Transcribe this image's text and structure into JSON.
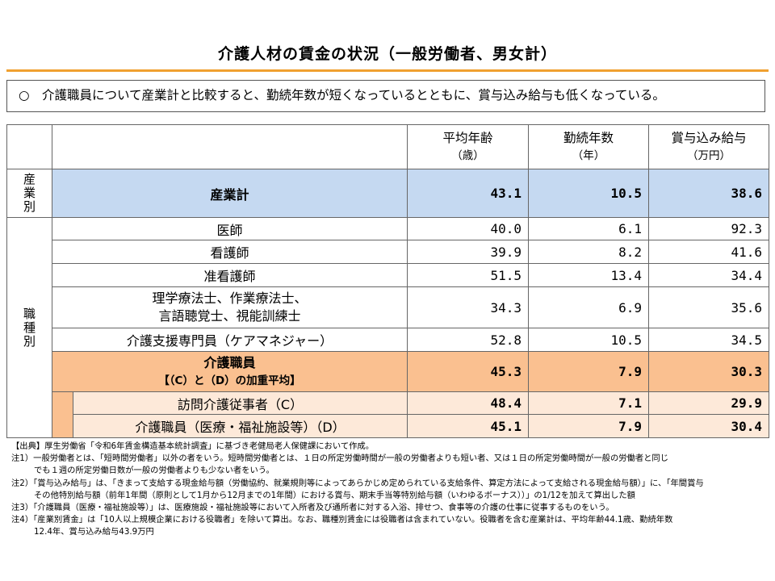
{
  "title": "介護人材の賃金の状況（一般労働者、男女計）",
  "summary": "○　介護職員について産業計と比較すると、勤続年数が短くなっているとともに、賞与込み給与も低くなっている。",
  "headers": {
    "col1": "平均年齢",
    "col1_unit": "（歳）",
    "col2": "勤続年数",
    "col2_unit": "（年）",
    "col3": "賞与込み給与",
    "col3_unit": "（万円）"
  },
  "categories": {
    "industry": "産業別",
    "occupation": "職種別"
  },
  "rows": {
    "industry_total": {
      "label": "産業計",
      "age": "43.1",
      "tenure": "10.5",
      "pay": "38.6"
    },
    "doctor": {
      "label": "医師",
      "age": "40.0",
      "tenure": "6.1",
      "pay": "92.3"
    },
    "nurse": {
      "label": "看護師",
      "age": "39.9",
      "tenure": "8.2",
      "pay": "41.6"
    },
    "assoc_nurse": {
      "label": "准看護師",
      "age": "51.5",
      "tenure": "13.4",
      "pay": "34.4"
    },
    "therapist": {
      "label_line1": "理学療法士、作業療法士、",
      "label_line2": "言語聴覚士、視能訓練士",
      "age": "34.3",
      "tenure": "6.9",
      "pay": "35.6"
    },
    "care_manager": {
      "label": "介護支援専門員（ケアマネジャー）",
      "age": "52.8",
      "tenure": "10.5",
      "pay": "34.5"
    },
    "care_worker": {
      "label_line1": "介護職員",
      "label_line2": "【（C）と（D）の加重平均】",
      "age": "45.3",
      "tenure": "7.9",
      "pay": "30.3"
    },
    "home_care": {
      "label": "訪問介護従事者（C）",
      "age": "48.4",
      "tenure": "7.1",
      "pay": "29.9"
    },
    "facility_care": {
      "label": "介護職員（医療・福祉施設等）（D）",
      "age": "45.1",
      "tenure": "7.9",
      "pay": "30.4"
    }
  },
  "notes": {
    "source": "【出典】厚生労働省「令和6年賃金構造基本統計調査」に基づき老健局老人保健課において作成。",
    "note1_a": "注1）一般労働者とは、「短時間労働者」以外の者をいう。短時間労働者とは、１日の所定労働時間が一般の労働者よりも短い者、又は１日の所定労働時間が一般の労働者と同じ",
    "note1_b": "でも１週の所定労働日数が一般の労働者よりも少ない者をいう。",
    "note2_a": "注2）「賞与込み給与」は、「きまって支給する現金給与額（労働協約、就業規則等によってあらかじめ定められている支給条件、算定方法によって支給される現金給与額）」に、「年間賞与",
    "note2_b": "その他特別給与額（前年1年間（原則として1月から12月までの1年間）における賞与、期末手当等特別給与額（いわゆるボーナス））」の1/12を加えて算出した額",
    "note3": "注3）「介護職員（医療・福祉施設等）」は、医療施設・福祉施設等において入所者及び通所者に対する入浴、排せつ、食事等の介護の仕事に従事するものをいう。",
    "note4_a": "注4）「産業別賃金」は「10人以上規模企業における役職者」を除いて算出。なお、職種別賃金には役職者は含まれていない。役職者を含む産業計は、平均年齢44.1歳、勤続年数",
    "note4_b": "12.4年、賞与込み給与43.9万円"
  },
  "colors": {
    "title_rule": "#f0a030",
    "industry_row": "#c5d9f1",
    "care_worker_row": "#fac090",
    "sub_rows": "#fde9d9"
  }
}
